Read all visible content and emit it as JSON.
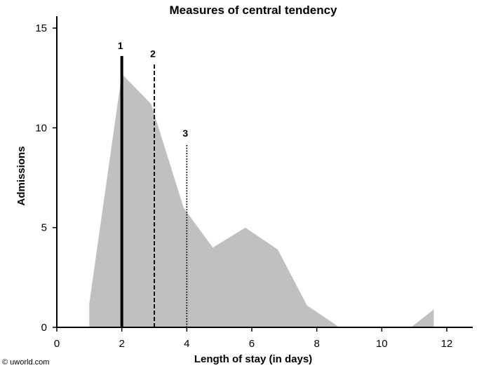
{
  "watermark": "© uworld.com",
  "chart_data": {
    "type": "area",
    "title": "Measures of central tendency",
    "xlabel": "Length of stay (in days)",
    "ylabel": "Admissions",
    "xlim": [
      0,
      12.8
    ],
    "ylim": [
      0,
      15.6
    ],
    "x_ticks": [
      0,
      2,
      4,
      6,
      8,
      10,
      12
    ],
    "y_ticks": [
      0,
      5,
      10,
      15
    ],
    "x_tick_labels": [
      "0",
      "2",
      "4",
      "6",
      "8",
      "10",
      "12"
    ],
    "y_tick_labels": [
      "0",
      "5",
      "10",
      "15"
    ],
    "grid": false,
    "fill_color": "#bfc0c2",
    "series": [
      {
        "points": [
          [
            1.0,
            0
          ],
          [
            1.0,
            1.2
          ],
          [
            2.0,
            12.7
          ],
          [
            2.9,
            11.2
          ],
          [
            3.9,
            6.0
          ],
          [
            4.8,
            4.0
          ],
          [
            5.8,
            5.0
          ],
          [
            6.8,
            3.9
          ],
          [
            7.7,
            1.1
          ],
          [
            8.7,
            0
          ],
          [
            10.9,
            0
          ],
          [
            11.6,
            0.9
          ],
          [
            11.6,
            0
          ]
        ]
      }
    ],
    "markers": [
      {
        "label": "1",
        "x": 2.0,
        "y_top": 13.6,
        "style": "solid"
      },
      {
        "label": "2",
        "x": 3.0,
        "y_top": 13.2,
        "style": "dashed"
      },
      {
        "label": "3",
        "x": 4.0,
        "y_top": 9.2,
        "style": "dotted"
      }
    ]
  }
}
